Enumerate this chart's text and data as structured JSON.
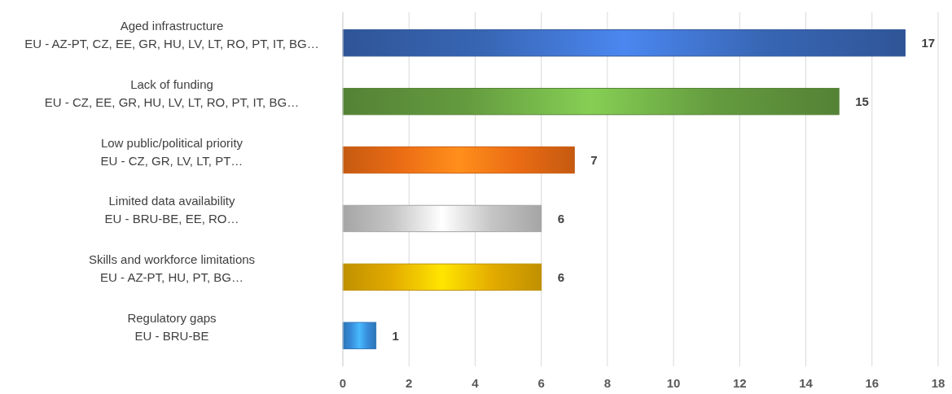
{
  "chart_data": {
    "type": "bar",
    "orientation": "horizontal",
    "categories": [
      "Aged infrastructure\nEU - AZ-PT, CZ, EE, GR, HU, LV, LT, RO, PT, IT, BG…",
      "Lack of funding\nEU - CZ, EE, GR, HU, LV, LT, RO, PT, IT, BG…",
      "Low public/political priority\nEU - CZ, GR, LV, LT, PT…",
      "Limited data availability\nEU - BRU-BE, EE, RO…",
      "Skills and workforce limitations\nEU - AZ-PT, HU, PT, BG…",
      "Regulatory gaps\nEU - BRU-BE"
    ],
    "values": [
      17,
      15,
      7,
      6,
      6,
      1
    ],
    "colors": [
      "#2f5597",
      "#548235",
      "#c55a11",
      "#a5a5a5",
      "#bf9000",
      "#2e75b6"
    ],
    "xlim": [
      0,
      18
    ],
    "xticks": [
      0,
      2,
      4,
      6,
      8,
      10,
      12,
      14,
      16,
      18
    ],
    "grid": "x",
    "data_labels": true
  }
}
